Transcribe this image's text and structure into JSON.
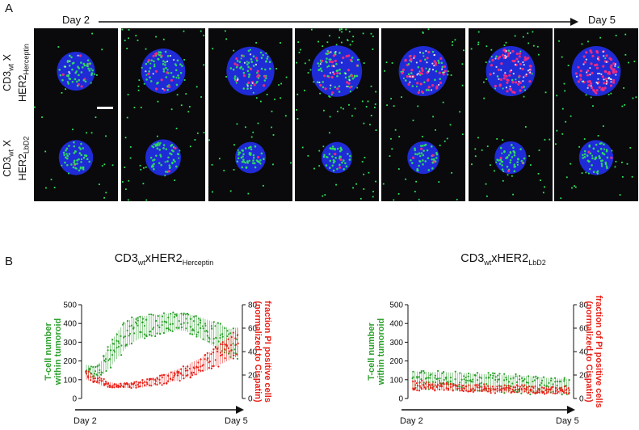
{
  "panel_a": {
    "letter": "A",
    "timeline": {
      "start": "Day 2",
      "end": "Day 5"
    },
    "rows": [
      {
        "label_line1": "CD3",
        "label_line1_sub": "wt",
        "label_line1_tail": " X",
        "label_line2": "HER2",
        "label_line2_sub": "Herceptin",
        "stage_red": [
          0.15,
          0.2,
          0.25,
          0.4,
          0.7,
          0.9,
          1.0
        ]
      },
      {
        "label_line1": "CD3",
        "label_line1_sub": "wt",
        "label_line1_tail": " X",
        "label_line2": "HER2",
        "label_line2_sub": "LbD2",
        "stage_red": [
          0.05,
          0.05,
          0.05,
          0.05,
          0.05,
          0.05,
          0.05
        ]
      }
    ],
    "tile_count": 7,
    "colors": {
      "nuclei": "#1f2bd6",
      "tcells": "#2ee65a",
      "pi": "#ff2a7a",
      "background": "#0a0a0c",
      "scalebar": "#ffffff"
    }
  },
  "panel_b": {
    "letter": "B",
    "charts": [
      {
        "title": "CD3",
        "title_sub": "wt",
        "title_mid": "xHER2",
        "title_sub2": "Herceptin",
        "left_label": [
          "T-cell number",
          "within tumoroid"
        ],
        "right_label": [
          "fraction PI positive cells",
          "(normalized to Cispatin)"
        ],
        "x_start": "Day 2",
        "x_end": "Day 5"
      },
      {
        "title": "CD3",
        "title_sub": "wt",
        "title_mid": "xHER2",
        "title_sub2": "LbD2",
        "left_label": [
          "T-cell number",
          "within tumoroid"
        ],
        "right_label": [
          "fraction of PI positive cells",
          "(normalized to Cispatin)"
        ],
        "x_start": "Day 2",
        "x_end": "Day 5"
      }
    ]
  },
  "chart_data": [
    {
      "type": "scatter",
      "title": "CD3wtxHER2Herceptin",
      "ylabel": "T-cell number within tumoroid",
      "y2label": "fraction PI positive cells (normalized to Cispatin)",
      "ylim": [
        0,
        500
      ],
      "y2lim": [
        0,
        80
      ],
      "yticks": [
        0,
        100,
        200,
        300,
        400,
        500
      ],
      "y2ticks": [
        0,
        20,
        40,
        60,
        80
      ],
      "x_range": [
        "Day 2",
        "Day 5"
      ],
      "series": [
        {
          "name": "T-cell number",
          "axis": "left",
          "color": "#2ca02c",
          "x": [
            0,
            0.05,
            0.1,
            0.15,
            0.2,
            0.25,
            0.3,
            0.35,
            0.4,
            0.45,
            0.5,
            0.55,
            0.6,
            0.65,
            0.7,
            0.75,
            0.8,
            0.85,
            0.9,
            0.95,
            1.0
          ],
          "y": [
            150,
            140,
            160,
            220,
            280,
            330,
            360,
            380,
            385,
            390,
            400,
            405,
            410,
            405,
            395,
            380,
            360,
            340,
            320,
            300,
            300
          ],
          "spread": [
            30,
            30,
            40,
            60,
            70,
            70,
            65,
            60,
            55,
            55,
            50,
            50,
            45,
            45,
            50,
            55,
            60,
            65,
            70,
            70,
            80
          ]
        },
        {
          "name": "fraction PI positive cells",
          "axis": "right",
          "color": "#e8221a",
          "x": [
            0,
            0.05,
            0.1,
            0.15,
            0.2,
            0.25,
            0.3,
            0.35,
            0.4,
            0.45,
            0.5,
            0.55,
            0.6,
            0.65,
            0.7,
            0.75,
            0.8,
            0.85,
            0.9,
            0.95,
            1.0
          ],
          "y": [
            20,
            17,
            14,
            12,
            11,
            11,
            11,
            12,
            13,
            14,
            16,
            18,
            20,
            22,
            25,
            28,
            31,
            35,
            39,
            43,
            48
          ],
          "spread": [
            4,
            3,
            3,
            2,
            2,
            2,
            2,
            3,
            3,
            3,
            4,
            4,
            5,
            5,
            6,
            6,
            7,
            8,
            9,
            10,
            12
          ]
        }
      ]
    },
    {
      "type": "scatter",
      "title": "CD3wtxHER2LbD2",
      "ylabel": "T-cell number within tumoroid",
      "y2label": "fraction of PI positive cells (normalized to Cispatin)",
      "ylim": [
        0,
        500
      ],
      "y2lim": [
        0,
        80
      ],
      "yticks": [
        0,
        100,
        200,
        300,
        400,
        500
      ],
      "y2ticks": [
        0,
        20,
        40,
        60,
        80
      ],
      "x_range": [
        "Day 2",
        "Day 5"
      ],
      "series": [
        {
          "name": "T-cell number",
          "axis": "left",
          "color": "#2ca02c",
          "x": [
            0,
            0.05,
            0.1,
            0.15,
            0.2,
            0.25,
            0.3,
            0.35,
            0.4,
            0.45,
            0.5,
            0.55,
            0.6,
            0.65,
            0.7,
            0.75,
            0.8,
            0.85,
            0.9,
            0.95,
            1.0
          ],
          "y": [
            100,
            98,
            97,
            96,
            95,
            94,
            92,
            90,
            88,
            86,
            84,
            82,
            80,
            78,
            76,
            74,
            72,
            70,
            68,
            66,
            65
          ],
          "spread": [
            45,
            45,
            45,
            45,
            45,
            45,
            45,
            45,
            45,
            45,
            45,
            45,
            45,
            45,
            45,
            45,
            45,
            40,
            40,
            40,
            40
          ]
        },
        {
          "name": "fraction PI positive cells",
          "axis": "right",
          "color": "#e8221a",
          "x": [
            0,
            0.05,
            0.1,
            0.15,
            0.2,
            0.25,
            0.3,
            0.35,
            0.4,
            0.45,
            0.5,
            0.55,
            0.6,
            0.65,
            0.7,
            0.75,
            0.8,
            0.85,
            0.9,
            0.95,
            1.0
          ],
          "y": [
            12,
            11,
            11,
            10,
            10,
            10,
            9,
            9,
            9,
            9,
            8,
            8,
            8,
            8,
            8,
            8,
            7,
            7,
            7,
            7,
            7
          ],
          "spread": [
            4,
            4,
            3,
            3,
            3,
            3,
            3,
            3,
            3,
            3,
            3,
            3,
            3,
            3,
            3,
            3,
            3,
            3,
            3,
            3,
            3
          ]
        }
      ]
    }
  ]
}
